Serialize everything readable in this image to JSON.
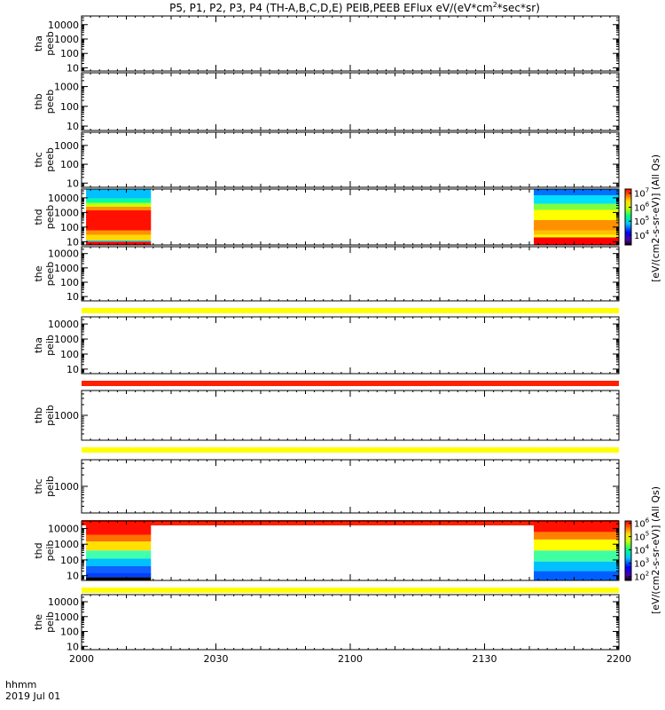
{
  "chart_data": {
    "type": "heatmap",
    "title_text": "P5, P1, P2, P3, P4 (TH-A,B,C,D,E) PEIB,PEEB EFlux eV/(eV*cm",
    "title_sup": "2",
    "title_end": "*sec*sr)",
    "x_axis": {
      "label_line1": "hhmm",
      "label_line2": "2019 Jul 01",
      "range": [
        0,
        120
      ],
      "ticks": [
        {
          "value": 0,
          "label": "2000"
        },
        {
          "value": 30,
          "label": "2030"
        },
        {
          "value": 60,
          "label": "2100"
        },
        {
          "value": 90,
          "label": "2130"
        },
        {
          "value": 120,
          "label": "2200"
        }
      ]
    },
    "colorbar_unit": "[eV/(cm2-s-sr-eV)] (All Qs)",
    "panels": [
      {
        "probe": "tha",
        "instrument": "peeb",
        "scale": "log",
        "y_range": [
          6,
          40000
        ],
        "y_ticks": [
          "10",
          "100",
          "1000",
          "10000"
        ],
        "strip_below": null,
        "spectrogram": false
      },
      {
        "probe": "thb",
        "instrument": "peeb",
        "scale": "log",
        "y_range": [
          6,
          5000
        ],
        "y_ticks": [
          "10",
          "100",
          "1000"
        ],
        "strip_below": null,
        "spectrogram": false
      },
      {
        "probe": "thc",
        "instrument": "peeb",
        "scale": "log",
        "y_range": [
          6,
          5000
        ],
        "y_ticks": [
          "10",
          "100",
          "1000"
        ],
        "strip_below": null,
        "spectrogram": false
      },
      {
        "probe": "thd",
        "instrument": "peeb",
        "scale": "log",
        "y_range": [
          6,
          40000
        ],
        "y_ticks": [
          "10",
          "100",
          "1000",
          "10000"
        ],
        "strip_below": null,
        "spectrogram": true,
        "data_segments": [
          {
            "start": 1.0,
            "end": 15.5,
            "bands": [
              {
                "from": 6,
                "to": 10,
                "color": "#ff0000"
              },
              {
                "from": 10,
                "to": 12,
                "color": "#00c8ff"
              },
              {
                "from": 12,
                "to": 30,
                "color": "#ffd800"
              },
              {
                "from": 30,
                "to": 60,
                "color": "#ff9000"
              },
              {
                "from": 60,
                "to": 1400,
                "color": "#ff1000"
              },
              {
                "from": 1400,
                "to": 2500,
                "color": "#ff9000"
              },
              {
                "from": 2500,
                "to": 4500,
                "color": "#c8ff00"
              },
              {
                "from": 4500,
                "to": 9000,
                "color": "#00ffa0"
              },
              {
                "from": 9000,
                "to": 40000,
                "color": "#00c0ff"
              }
            ]
          },
          {
            "start": 101.0,
            "end": 120.0,
            "bands": [
              {
                "from": 6,
                "to": 20,
                "color": "#ff0000"
              },
              {
                "from": 20,
                "to": 30,
                "color": "#ffff00"
              },
              {
                "from": 30,
                "to": 60,
                "color": "#ffc000"
              },
              {
                "from": 60,
                "to": 300,
                "color": "#ff9000"
              },
              {
                "from": 300,
                "to": 1500,
                "color": "#ffff00"
              },
              {
                "from": 1500,
                "to": 4000,
                "color": "#80ff40"
              },
              {
                "from": 4000,
                "to": 15000,
                "color": "#00e0ff"
              },
              {
                "from": 15000,
                "to": 40000,
                "color": "#0070ff"
              }
            ]
          }
        ],
        "colorbar": {
          "range": [
            2000,
            20000000
          ],
          "ticks": [
            {
              "value": 10000,
              "base": "10",
              "exp": "4"
            },
            {
              "value": 100000,
              "base": "10",
              "exp": "5"
            },
            {
              "value": 1000000,
              "base": "10",
              "exp": "6"
            },
            {
              "value": 10000000,
              "base": "10",
              "exp": "7"
            }
          ]
        }
      },
      {
        "probe": "the",
        "instrument": "peeb",
        "scale": "log",
        "y_range": [
          5,
          30000
        ],
        "y_ticks": [
          "10",
          "100",
          "1000",
          "10000"
        ],
        "strip_below": "#ffff00",
        "spectrogram": false
      },
      {
        "probe": "tha",
        "instrument": "peib",
        "scale": "log",
        "y_range": [
          5,
          30000
        ],
        "y_ticks": [
          "10",
          "100",
          "1000",
          "10000"
        ],
        "strip_below": "#ff2000",
        "spectrogram": false
      },
      {
        "probe": "thb",
        "instrument": "peib",
        "scale": "log",
        "y_range": [
          200,
          5000
        ],
        "y_ticks": [
          "1000"
        ],
        "strip_below": "#ffff00",
        "spectrogram": false
      },
      {
        "probe": "thc",
        "instrument": "peib",
        "scale": "log",
        "y_range": [
          200,
          5000
        ],
        "y_ticks": [
          "1000"
        ],
        "strip_below": "#ff2000",
        "spectrogram": false
      },
      {
        "probe": "thd",
        "instrument": "peib",
        "scale": "log",
        "y_range": [
          5,
          30000
        ],
        "y_ticks": [
          "10",
          "100",
          "1000",
          "10000"
        ],
        "strip_below": "#ffff00",
        "spectrogram": true,
        "data_segments": [
          {
            "start": 1.0,
            "end": 15.5,
            "bands": [
              {
                "from": 5,
                "to": 8,
                "color": "#000000"
              },
              {
                "from": 8,
                "to": 15,
                "color": "#0040ff"
              },
              {
                "from": 15,
                "to": 40,
                "color": "#1060ff"
              },
              {
                "from": 40,
                "to": 120,
                "color": "#00c0ff"
              },
              {
                "from": 120,
                "to": 400,
                "color": "#40ffb0"
              },
              {
                "from": 400,
                "to": 1500,
                "color": "#ffe000"
              },
              {
                "from": 1500,
                "to": 4000,
                "color": "#ff7000"
              },
              {
                "from": 4000,
                "to": 30000,
                "color": "#ff1000"
              }
            ]
          },
          {
            "start": 101.0,
            "end": 120.0,
            "bands": [
              {
                "from": 5,
                "to": 20,
                "color": "#0060ff"
              },
              {
                "from": 20,
                "to": 80,
                "color": "#00c0ff"
              },
              {
                "from": 80,
                "to": 400,
                "color": "#40ffa0"
              },
              {
                "from": 400,
                "to": 2000,
                "color": "#ffff00"
              },
              {
                "from": 2000,
                "to": 6000,
                "color": "#ff8000"
              },
              {
                "from": 6000,
                "to": 30000,
                "color": "#ff1000"
              }
            ]
          }
        ],
        "colorbar": {
          "range": [
            50,
            1500000
          ],
          "ticks": [
            {
              "value": 100,
              "base": "10",
              "exp": "2"
            },
            {
              "value": 1000,
              "base": "10",
              "exp": "3"
            },
            {
              "value": 10000,
              "base": "10",
              "exp": "4"
            },
            {
              "value": 100000,
              "base": "10",
              "exp": "5"
            },
            {
              "value": 1000000,
              "base": "10",
              "exp": "6"
            }
          ]
        }
      },
      {
        "probe": "the",
        "instrument": "peib",
        "scale": "log",
        "y_range": [
          6,
          30000
        ],
        "y_ticks": [
          "10",
          "100",
          "1000",
          "10000"
        ],
        "strip_below": null,
        "spectrogram": false
      }
    ]
  }
}
